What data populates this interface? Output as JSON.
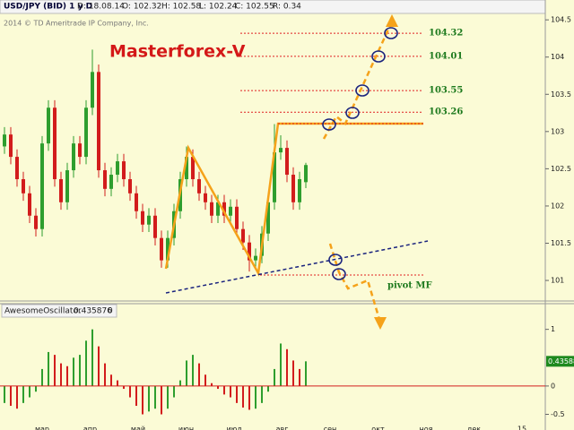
{
  "header": {
    "symbol": "USD/JPY (BID) 1 y D",
    "date": "D: 18.08.14",
    "open": "O: 102.32",
    "high": "H: 102.58",
    "low": "L: 102.24",
    "close": "C: 102.55",
    "range": "R: 0.34",
    "copyright": "2014 © TD Ameritrade IP Company, Inc."
  },
  "chart_data": [
    {
      "type": "candlestick",
      "title": "Masterforex-V",
      "open": [
        102.8,
        102.96,
        102.66,
        102.36,
        102.17,
        101.87,
        101.69,
        102.84,
        103.32,
        102.36,
        102.05,
        102.48,
        102.84,
        102.66,
        103.32,
        103.8,
        102.48,
        102.23,
        102.42,
        102.6,
        102.36,
        102.17,
        101.93,
        101.75,
        101.87,
        101.57,
        101.27,
        101.57,
        101.93,
        102.36,
        102.66,
        102.36,
        102.17,
        102.05,
        101.87,
        102.05,
        101.87,
        101.99,
        101.69,
        101.51,
        101.27,
        101.33,
        101.63,
        102.05,
        102.72,
        102.78,
        102.42,
        102.05,
        102.32
      ],
      "high": [
        103.06,
        103.06,
        102.76,
        102.46,
        102.27,
        101.97,
        102.94,
        103.42,
        103.42,
        102.46,
        102.58,
        102.94,
        102.94,
        103.42,
        104.1,
        103.9,
        102.58,
        102.52,
        102.7,
        102.7,
        102.46,
        102.27,
        102.03,
        101.97,
        101.97,
        101.67,
        101.67,
        102.03,
        102.46,
        102.8,
        102.76,
        102.46,
        102.27,
        102.15,
        102.15,
        102.15,
        102.09,
        102.09,
        101.79,
        101.61,
        101.43,
        101.73,
        102.15,
        103.1,
        102.95,
        102.88,
        102.52,
        102.46,
        102.58
      ],
      "low": [
        102.7,
        102.56,
        102.26,
        102.07,
        101.77,
        101.59,
        101.59,
        102.74,
        102.26,
        101.95,
        101.95,
        102.38,
        102.56,
        102.56,
        103.22,
        102.38,
        102.13,
        102.13,
        102.32,
        102.26,
        102.07,
        101.83,
        101.65,
        101.65,
        101.47,
        101.17,
        101.17,
        101.47,
        101.83,
        102.26,
        102.26,
        102.07,
        101.95,
        101.77,
        101.77,
        101.77,
        101.77,
        101.59,
        101.41,
        101.12,
        101.17,
        101.23,
        101.53,
        101.95,
        102.62,
        102.32,
        101.95,
        101.95,
        102.24
      ],
      "close": [
        102.96,
        102.66,
        102.36,
        102.17,
        101.87,
        101.69,
        102.84,
        103.32,
        102.36,
        102.05,
        102.48,
        102.84,
        102.66,
        103.32,
        103.8,
        102.48,
        102.23,
        102.42,
        102.6,
        102.36,
        102.17,
        101.93,
        101.75,
        101.87,
        101.57,
        101.27,
        101.57,
        101.93,
        102.36,
        102.66,
        102.36,
        102.17,
        102.05,
        101.87,
        102.05,
        101.87,
        101.99,
        101.69,
        101.51,
        101.27,
        101.33,
        101.63,
        102.05,
        102.72,
        102.78,
        102.42,
        102.05,
        102.36,
        102.55
      ],
      "up_color": "#2e9e2e",
      "down_color": "#d21c1c",
      "ylim": [
        100.76,
        104.55
      ],
      "yticks": [
        101,
        101.5,
        102,
        102.5,
        103,
        103.5,
        104,
        104.5
      ],
      "levels": [
        104.32,
        104.01,
        103.55,
        103.26
      ],
      "level_color": "#e02020",
      "pivot_label": "pivot MF",
      "x_labels": [
        "мар",
        "апр",
        "май",
        "июн",
        "июл",
        "авг",
        "сен",
        "окт",
        "ноя",
        "дек",
        "15"
      ]
    },
    {
      "type": "histogram_oscillator",
      "title": "AwesomeOscillator",
      "current": "0.435876",
      "zero_label": "0",
      "current_tag": "0.43588",
      "values": [
        -0.3,
        -0.35,
        -0.4,
        -0.3,
        -0.2,
        -0.1,
        0.3,
        0.6,
        0.55,
        0.4,
        0.35,
        0.5,
        0.55,
        0.8,
        1.0,
        0.7,
        0.4,
        0.2,
        0.1,
        -0.05,
        -0.2,
        -0.35,
        -0.5,
        -0.45,
        -0.4,
        -0.5,
        -0.4,
        -0.2,
        0.1,
        0.45,
        0.55,
        0.4,
        0.2,
        0.05,
        -0.05,
        -0.15,
        -0.2,
        -0.3,
        -0.38,
        -0.42,
        -0.4,
        -0.3,
        -0.1,
        0.3,
        0.75,
        0.65,
        0.45,
        0.3,
        0.435876
      ],
      "up_color": "#2e9e2e",
      "down_color": "#d21c1c",
      "ylim": [
        -0.65,
        1.2
      ],
      "yticks": [
        -0.5,
        0,
        1
      ]
    }
  ]
}
